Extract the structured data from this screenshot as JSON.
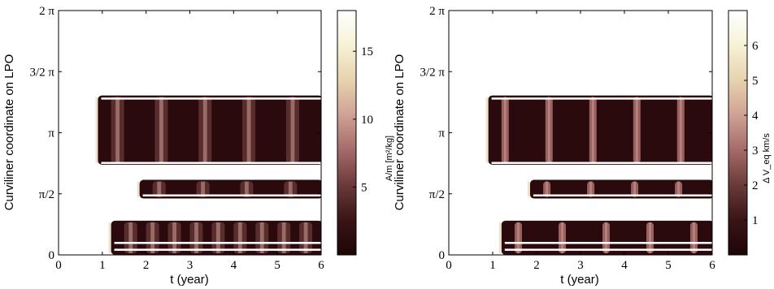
{
  "colors": {
    "dark": "#2a0a0c",
    "colormap": [
      "#1e0507",
      "#3a1416",
      "#6a3a3a",
      "#a46a68",
      "#cfa195",
      "#e7d2ae",
      "#f6f2d6",
      "#ffffff"
    ]
  },
  "chart_data": [
    {
      "type": "heatmap",
      "xlabel": "t (year)",
      "ylabel": "Curviliner coordinate on LPO",
      "xlim": [
        0,
        6
      ],
      "ylim": [
        0,
        6.2832
      ],
      "x_ticks": [
        "0",
        "1",
        "2",
        "3",
        "4",
        "5",
        "6"
      ],
      "y_ticks": [
        "0",
        "π/2",
        "π",
        "3/2 π",
        "2 π"
      ],
      "colorbar": {
        "label": "A/m [m²/kg]",
        "range": [
          0,
          18
        ],
        "ticks": [
          "5",
          "10",
          "15"
        ]
      },
      "bands": [
        {
          "t_start": 0.9,
          "y": [
            2.32,
            4.1
          ],
          "period": 1.0
        },
        {
          "t_start": 1.85,
          "y": [
            1.45,
            1.93
          ],
          "period": 1.0
        },
        {
          "t_start": 1.2,
          "y": [
            0.0,
            0.88
          ],
          "period": 0.5
        }
      ]
    },
    {
      "type": "heatmap",
      "xlabel": "t (year)",
      "ylabel": "Curviliner coordinate on LPO",
      "xlim": [
        0,
        6
      ],
      "ylim": [
        0,
        6.2832
      ],
      "x_ticks": [
        "0",
        "1",
        "2",
        "3",
        "4",
        "5",
        "6"
      ],
      "y_ticks": [
        "0",
        "π/2",
        "π",
        "3/2 π",
        "2 π"
      ],
      "colorbar": {
        "label": "Δ V_eq km/s",
        "range": [
          0,
          7
        ],
        "ticks": [
          "1",
          "2",
          "3",
          "4",
          "5",
          "6"
        ]
      },
      "bands": [
        {
          "t_start": 0.9,
          "y": [
            2.32,
            4.1
          ],
          "period": 1.0
        },
        {
          "t_start": 1.85,
          "y": [
            1.45,
            1.93
          ],
          "period": 1.0
        },
        {
          "t_start": 1.2,
          "y": [
            0.0,
            0.88
          ],
          "period": 1.0
        }
      ]
    }
  ]
}
